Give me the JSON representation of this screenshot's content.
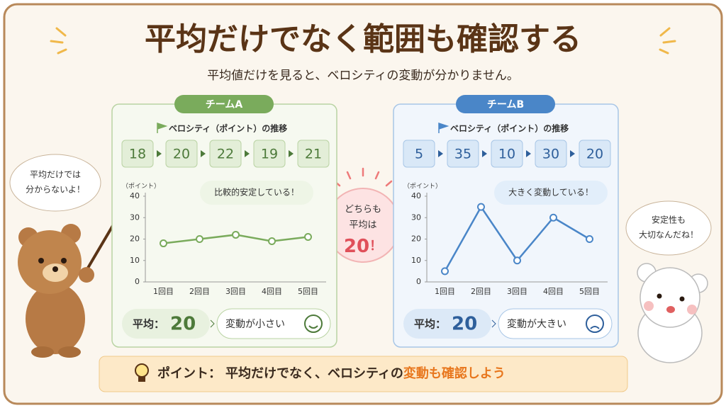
{
  "title": "平均だけでなく範囲も確認する",
  "subtitle": "平均値だけを見ると、ベロシティの変動が分かりません。",
  "left_bubble": [
    "平均だけでは",
    "分からないよ！"
  ],
  "center_bubble": {
    "lines": [
      "どちらも",
      "平均は"
    ],
    "value": 20,
    "suffix": "！"
  },
  "right_bubble": [
    "安定性も",
    "大切なんだね！"
  ],
  "point": {
    "label": "ポイント：",
    "text": "平均だけでなく、ベロシティの",
    "highlight": "変動も確認しよう"
  },
  "chart_data": [
    {
      "type": "line",
      "team": "チームA",
      "sequence_title": "ベロシティ（ポイント）の推移",
      "y_label": "（ポイント）",
      "categories": [
        "1回目",
        "2回目",
        "3回目",
        "4回目",
        "5回目"
      ],
      "values": [
        18,
        20,
        22,
        19,
        21
      ],
      "color": "#7aab5c",
      "ylim": [
        0,
        40
      ],
      "yticks": [
        0,
        10,
        20,
        30,
        40
      ],
      "annotation": "比較的安定している！",
      "average_label": "平均：",
      "average": 20,
      "verdict": "変動が小さい"
    },
    {
      "type": "line",
      "team": "チームB",
      "sequence_title": "ベロシティ（ポイント）の推移",
      "y_label": "（ポイント）",
      "categories": [
        "1回目",
        "2回目",
        "3回目",
        "4回目",
        "5回目"
      ],
      "values": [
        5,
        35,
        10,
        30,
        20
      ],
      "color": "#4a86c8",
      "ylim": [
        0,
        40
      ],
      "yticks": [
        0,
        10,
        20,
        30,
        40
      ],
      "annotation": "大きく変動している！",
      "average_label": "平均：",
      "average": 20,
      "verdict": "変動が大きい"
    }
  ]
}
